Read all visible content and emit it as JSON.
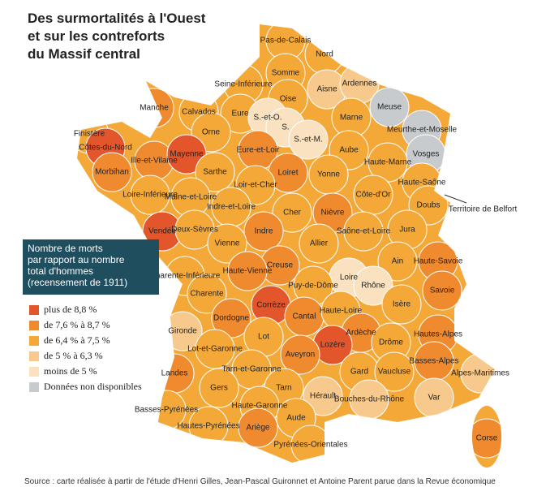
{
  "title": [
    "Des surmortalités à l'Ouest",
    "et sur les contreforts",
    "du Massif central"
  ],
  "legend": {
    "title": [
      "Nombre de morts",
      "par rapport au nombre",
      "total d'hommes",
      "(recensement de 1911)"
    ],
    "items": [
      {
        "label": "plus de 8,8 %",
        "color": "#e3562c"
      },
      {
        "label": "de 7,6 % à 8,7 %",
        "color": "#ef8a2e"
      },
      {
        "label": "de 6,4 % à 7,5 %",
        "color": "#f4a838"
      },
      {
        "label": "de 5 % à 6,3 %",
        "color": "#f7c98c"
      },
      {
        "label": "moins de 5 %",
        "color": "#fae2c0"
      },
      {
        "label": "Données non disponibles",
        "color": "#c8cbce"
      }
    ]
  },
  "departments": [
    {
      "label": "Pas-de-Calais",
      "level": 2
    },
    {
      "label": "Nord",
      "level": 2
    },
    {
      "label": "Somme",
      "level": 2
    },
    {
      "label": "Seine-Inférieure",
      "level": 2
    },
    {
      "label": "Aisne",
      "level": 3
    },
    {
      "label": "Ardennes",
      "level": 3
    },
    {
      "label": "Manche",
      "level": 1
    },
    {
      "label": "Calvados",
      "level": 2
    },
    {
      "label": "Eure",
      "level": 2
    },
    {
      "label": "Oise",
      "level": 2
    },
    {
      "label": "S.-et-O.",
      "level": 4
    },
    {
      "label": "S.",
      "level": 4
    },
    {
      "label": "Marne",
      "level": 2
    },
    {
      "label": "Meuse",
      "level": 5
    },
    {
      "label": "Meurthe-et-Moselle",
      "level": 5
    },
    {
      "label": "Finistère",
      "level": 2
    },
    {
      "label": "Côtes-du-Nord",
      "level": 0
    },
    {
      "label": "Orne",
      "level": 2
    },
    {
      "label": "Eure-et-Loir",
      "level": 1
    },
    {
      "label": "S.-et-M.",
      "level": 4
    },
    {
      "label": "Aube",
      "level": 2
    },
    {
      "label": "Vosges",
      "level": 5
    },
    {
      "label": "Ille-et-Vilaine",
      "level": 1
    },
    {
      "label": "Mayenne",
      "level": 0
    },
    {
      "label": "Morbihan",
      "level": 1
    },
    {
      "label": "Sarthe",
      "level": 2
    },
    {
      "label": "Loiret",
      "level": 1
    },
    {
      "label": "Yonne",
      "level": 2
    },
    {
      "label": "Haute-Marne",
      "level": 2
    },
    {
      "label": "Haute-Saône",
      "level": 2
    },
    {
      "label": "Territoire de Belfort",
      "level": 4
    },
    {
      "label": "Loire-Inférieure",
      "level": 2
    },
    {
      "label": "Maine-et-Loire",
      "level": 2
    },
    {
      "label": "Loir-et-Cher",
      "level": 2
    },
    {
      "label": "Indre-et-Loire",
      "level": 2
    },
    {
      "label": "Côte-d'Or",
      "level": 2
    },
    {
      "label": "Doubs",
      "level": 2
    },
    {
      "label": "Cher",
      "level": 2
    },
    {
      "label": "Nièvre",
      "level": 1
    },
    {
      "label": "Vendée",
      "level": 0
    },
    {
      "label": "Deux-Sèvres",
      "level": 2
    },
    {
      "label": "Indre",
      "level": 1
    },
    {
      "label": "Saône-et-Loire",
      "level": 2
    },
    {
      "label": "Jura",
      "level": 2
    },
    {
      "label": "Vienne",
      "level": 2
    },
    {
      "label": "Allier",
      "level": 2
    },
    {
      "label": "Haute-Savoie",
      "level": 1
    },
    {
      "label": "Charente-Inférieure",
      "level": 2
    },
    {
      "label": "Creuse",
      "level": 1
    },
    {
      "label": "Haute-Vienne",
      "level": 1
    },
    {
      "label": "Ain",
      "level": 2
    },
    {
      "label": "Loire",
      "level": 4
    },
    {
      "label": "Rhône",
      "level": 4
    },
    {
      "label": "Savoie",
      "level": 1
    },
    {
      "label": "Puy-de-Dôme",
      "level": 2
    },
    {
      "label": "Charente",
      "level": 2
    },
    {
      "label": "Corrèze",
      "level": 0
    },
    {
      "label": "Cantal",
      "level": 1
    },
    {
      "label": "Haute-Loire",
      "level": 2
    },
    {
      "label": "Isère",
      "level": 2
    },
    {
      "label": "Dordogne",
      "level": 1
    },
    {
      "label": "Gironde",
      "level": 3
    },
    {
      "label": "Lot",
      "level": 2
    },
    {
      "label": "Ardèche",
      "level": 1
    },
    {
      "label": "Lozère",
      "level": 0
    },
    {
      "label": "Drôme",
      "level": 2
    },
    {
      "label": "Hautes-Alpes",
      "level": 1
    },
    {
      "label": "Lot-et-Garonne",
      "level": 2
    },
    {
      "label": "Aveyron",
      "level": 1
    },
    {
      "label": "Basses-Alpes",
      "level": 1
    },
    {
      "label": "Alpes-Maritimes",
      "level": 3
    },
    {
      "label": "Landes",
      "level": 1
    },
    {
      "label": "Tarn-et-Garonne",
      "level": 2
    },
    {
      "label": "Gard",
      "level": 2
    },
    {
      "label": "Vaucluse",
      "level": 2
    },
    {
      "label": "Gers",
      "level": 2
    },
    {
      "label": "Tarn",
      "level": 2
    },
    {
      "label": "Hérault",
      "level": 3
    },
    {
      "label": "Bouches-du-Rhône",
      "level": 3
    },
    {
      "label": "Var",
      "level": 3
    },
    {
      "label": "Basses-Pyrénées",
      "level": 2
    },
    {
      "label": "Haute-Garonne",
      "level": 2
    },
    {
      "label": "Aude",
      "level": 2
    },
    {
      "label": "Hautes-Pyrénées",
      "level": 2
    },
    {
      "label": "Ariège",
      "level": 1
    },
    {
      "label": "Pyrénées-Orientales",
      "level": 2
    },
    {
      "label": "Corse",
      "level": 1
    }
  ],
  "source": "Source : carte réalisée à partir de l'étude d'Henri Gilles, Jean-Pascal Guironnet et Antoine Parent parue dans la Revue économique"
}
